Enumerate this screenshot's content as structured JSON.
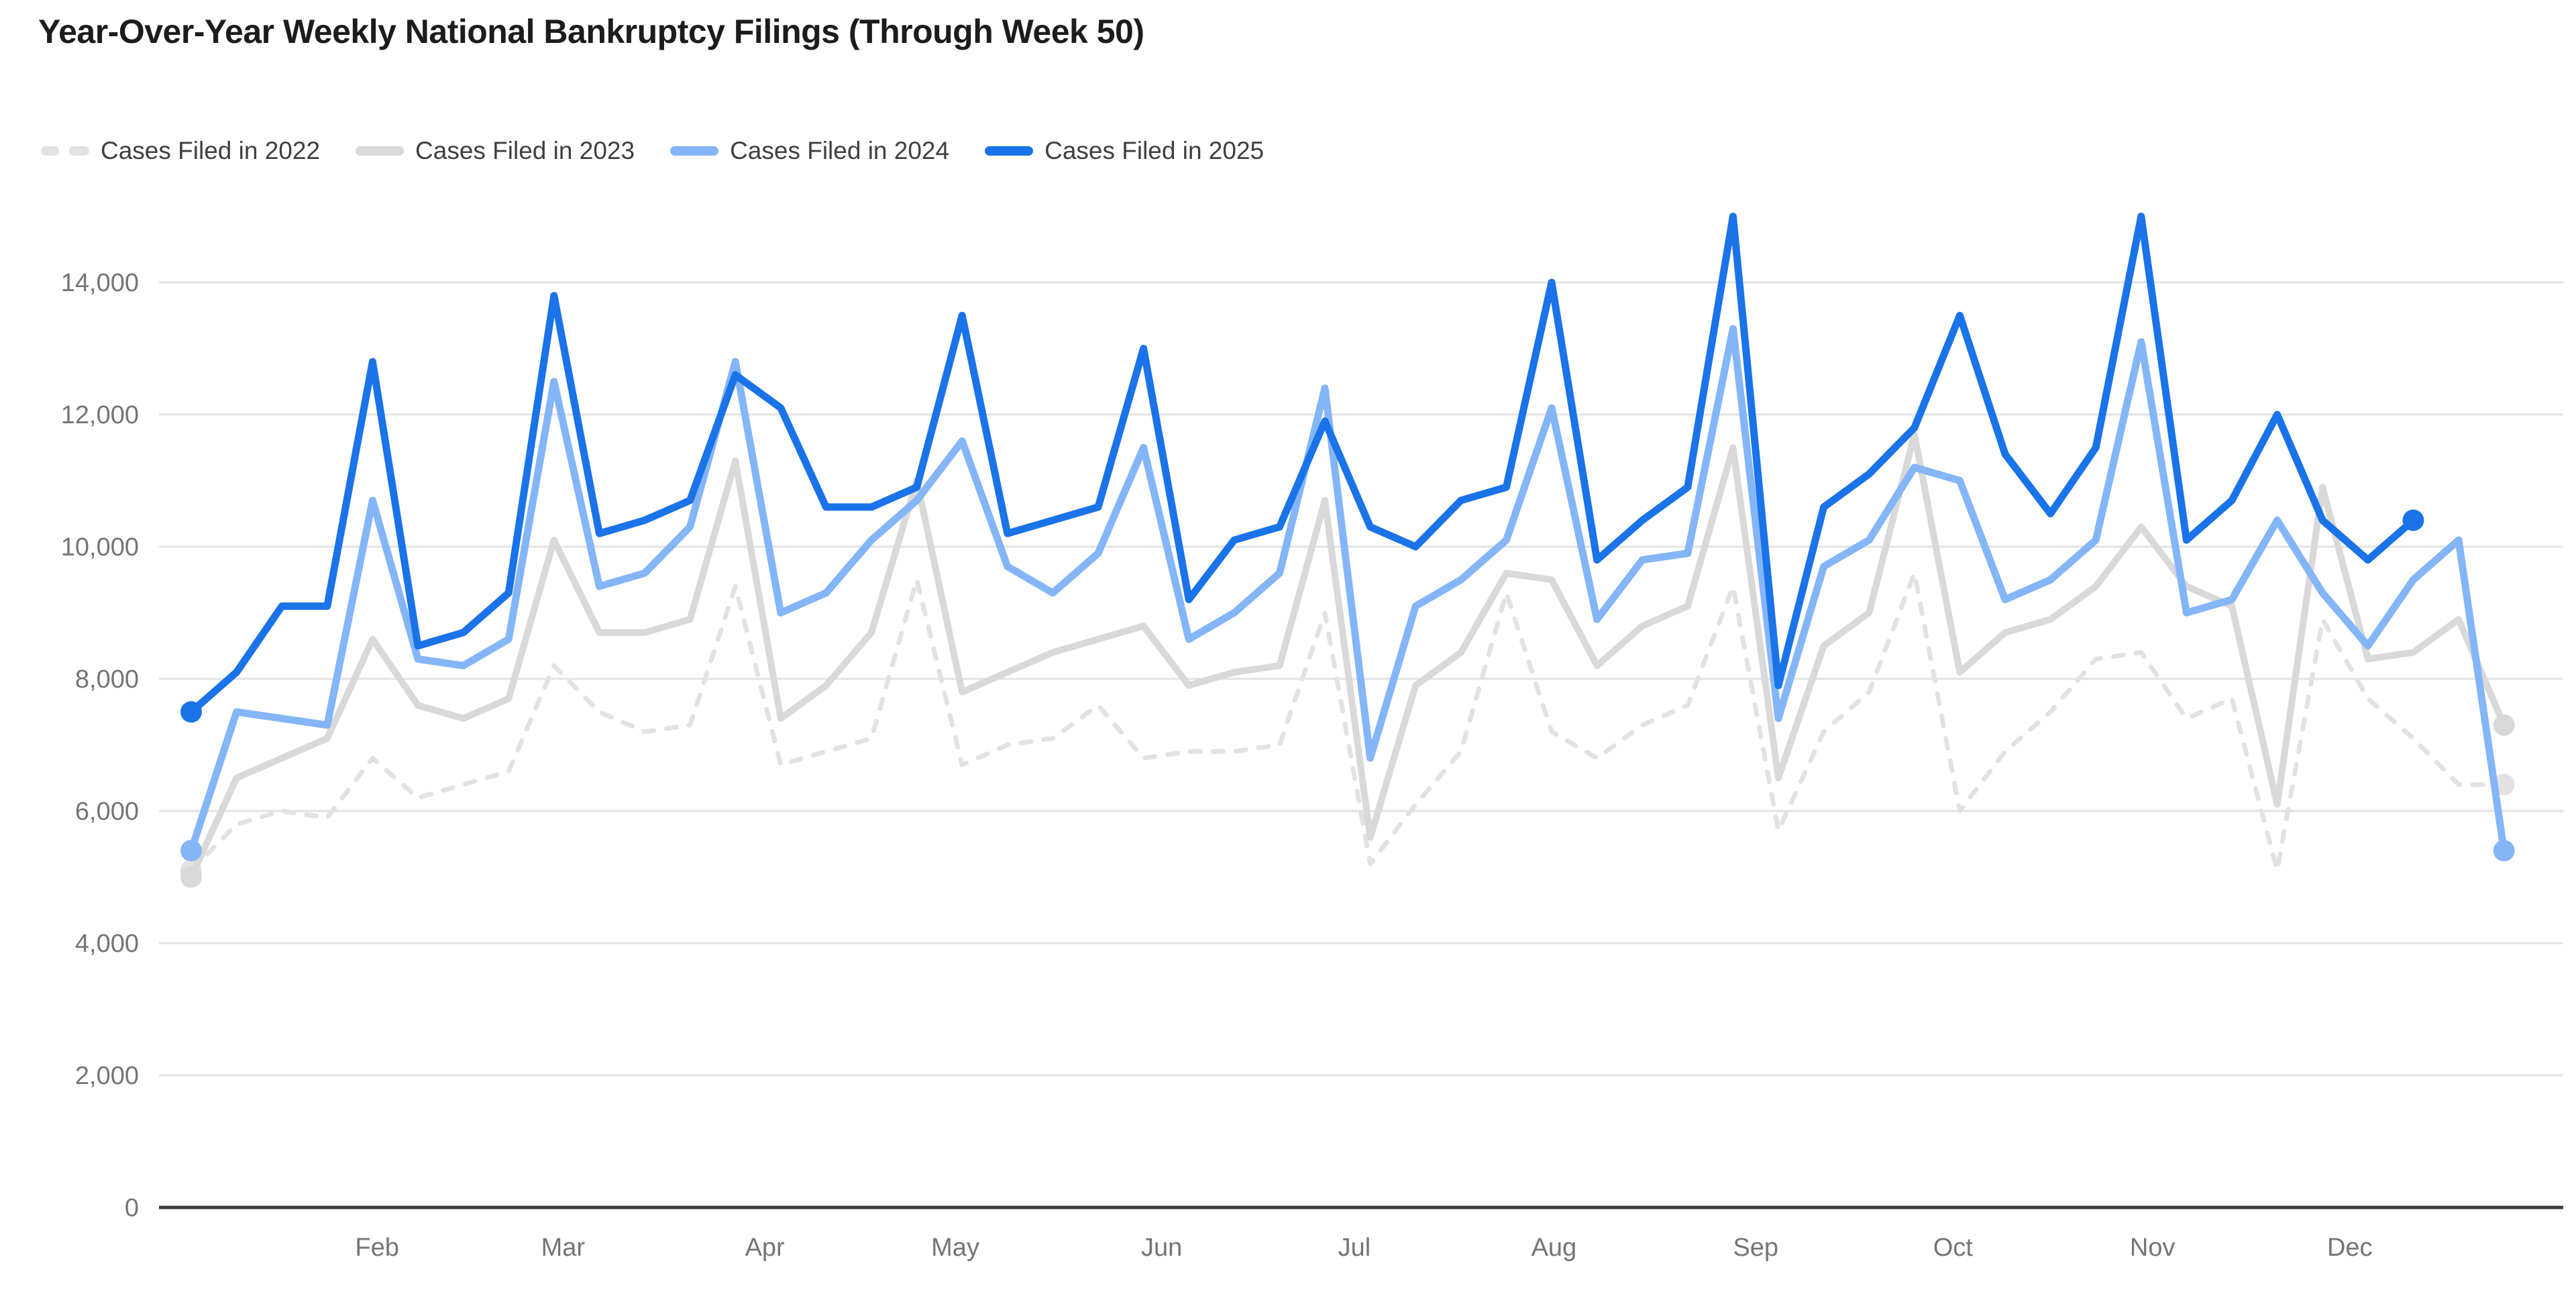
{
  "title": "Year-Over-Year Weekly National Bankruptcy Filings (Through Week 50)",
  "colors": {
    "background": "#ffffff",
    "title_text": "#1c1c1c",
    "legend_text": "#3c4043",
    "axis_label_text": "#757575",
    "gridline": "#e3e3e3",
    "axis_line": "#3c3c3c"
  },
  "chart_data": {
    "type": "line",
    "title": "Year-Over-Year Weekly National Bankruptcy Filings (Through Week 50)",
    "xlabel": "",
    "ylabel": "",
    "x_unit": "week of year (1-52)",
    "ylim": [
      0,
      15100
    ],
    "y_ticks": [
      0,
      2000,
      4000,
      6000,
      8000,
      10000,
      12000,
      14000
    ],
    "y_tick_labels": [
      "0",
      "2,000",
      "4,000",
      "6,000",
      "8,000",
      "10,000",
      "12,000",
      "14,000"
    ],
    "grid": true,
    "legend_position": "top",
    "x_month_labels": [
      {
        "label": "Feb",
        "week": 5.1
      },
      {
        "label": "Mar",
        "week": 9.2
      },
      {
        "label": "Apr",
        "week": 13.65
      },
      {
        "label": "May",
        "week": 17.85
      },
      {
        "label": "Jun",
        "week": 22.4
      },
      {
        "label": "Jul",
        "week": 26.65
      },
      {
        "label": "Aug",
        "week": 31.05
      },
      {
        "label": "Sep",
        "week": 35.5
      },
      {
        "label": "Oct",
        "week": 39.85
      },
      {
        "label": "Nov",
        "week": 44.25
      },
      {
        "label": "Dec",
        "week": 48.6
      }
    ],
    "series": [
      {
        "name": "Cases Filed in 2022",
        "year": 2022,
        "color": "#e2e2e2",
        "dashed": true,
        "line_width": 7,
        "values": [
          5100,
          5800,
          6000,
          5900,
          6800,
          6200,
          6400,
          6600,
          8200,
          7500,
          7200,
          7300,
          9400,
          6700,
          6900,
          7100,
          9500,
          6700,
          7000,
          7100,
          7600,
          6800,
          6900,
          6900,
          7000,
          9000,
          5200,
          6100,
          6900,
          9300,
          7200,
          6800,
          7300,
          7600,
          9400,
          5700,
          7200,
          7800,
          9600,
          6000,
          6900,
          7500,
          8300,
          8400,
          7400,
          7700,
          5100,
          8900,
          7700,
          7100,
          6400,
          6400
        ]
      },
      {
        "name": "Cases Filed in 2023",
        "year": 2023,
        "color": "#d9d9d9",
        "dashed": false,
        "line_width": 10,
        "values": [
          5000,
          6500,
          6800,
          7100,
          8600,
          7600,
          7400,
          7700,
          10100,
          8700,
          8700,
          8900,
          11300,
          7400,
          7900,
          8700,
          11000,
          7800,
          8100,
          8400,
          8600,
          8800,
          7900,
          8100,
          8200,
          10700,
          5600,
          7900,
          8400,
          9600,
          9500,
          8200,
          8800,
          9100,
          11500,
          6500,
          8500,
          9000,
          11700,
          8100,
          8700,
          8900,
          9400,
          10300,
          9400,
          9100,
          6100,
          10900,
          8300,
          8400,
          8900,
          7300
        ]
      },
      {
        "name": "Cases Filed in 2024",
        "year": 2024,
        "color": "#84b5f7",
        "dashed": false,
        "line_width": 11,
        "values": [
          5400,
          7500,
          7400,
          7300,
          10700,
          8300,
          8200,
          8600,
          12500,
          9400,
          9600,
          10300,
          12800,
          9000,
          9300,
          10100,
          10700,
          11600,
          9700,
          9300,
          9900,
          11500,
          8600,
          9000,
          9600,
          12400,
          6800,
          9100,
          9500,
          10100,
          12100,
          8900,
          9800,
          9900,
          13300,
          7400,
          9700,
          10100,
          11200,
          11000,
          9200,
          9500,
          10100,
          13100,
          9000,
          9200,
          10400,
          9300,
          8500,
          9500,
          10100,
          5400
        ]
      },
      {
        "name": "Cases Filed in 2025",
        "year": 2025,
        "color": "#1a73e8",
        "dashed": false,
        "line_width": 11,
        "values": [
          7500,
          8100,
          9100,
          9100,
          12800,
          8500,
          8700,
          9300,
          13800,
          10200,
          10400,
          10700,
          12600,
          12100,
          10600,
          10600,
          10900,
          13500,
          10200,
          10400,
          10600,
          13000,
          9200,
          10100,
          10300,
          11900,
          10300,
          10000,
          10700,
          10900,
          14000,
          9800,
          10400,
          10900,
          15000,
          7900,
          10600,
          11100,
          11800,
          13500,
          11400,
          10500,
          11500,
          15000,
          10100,
          10700,
          12000,
          10400,
          9800,
          10400
        ]
      }
    ]
  }
}
